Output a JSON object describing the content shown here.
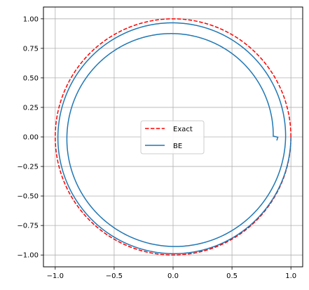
{
  "chart_data": {
    "type": "line",
    "title": "",
    "xlabel": "",
    "ylabel": "",
    "xlim": [
      -1.1,
      1.1
    ],
    "ylim": [
      -1.1,
      1.1
    ],
    "aspect": "equal",
    "grid": true,
    "legend_position": "center",
    "x_ticks": [
      -1.0,
      -0.5,
      0.0,
      0.5,
      1.0
    ],
    "x_tick_labels": [
      "−1.0",
      "−0.5",
      "0.0",
      "0.5",
      "1.0"
    ],
    "y_ticks": [
      1.0,
      0.75,
      0.5,
      0.25,
      0.0,
      -0.25,
      -0.5,
      -0.75,
      -1.0
    ],
    "y_tick_labels": [
      "1.00",
      "0.75",
      "0.50",
      "0.25",
      "0.00",
      "−0.25",
      "−0.50",
      "−0.75",
      "−1.00"
    ],
    "series": [
      {
        "name": "Exact",
        "color": "#ff0000",
        "style": "dashed",
        "curve": "unit-circle",
        "radius": 1.0
      },
      {
        "name": "BE",
        "color": "#1f77b4",
        "style": "solid",
        "curve": "decaying-spiral",
        "start": [
          1.0,
          0.0
        ],
        "end": [
          0.88,
          -0.03
        ],
        "radius_after_1_turn": 0.955,
        "radius_after_2_turns": 0.89
      }
    ]
  }
}
